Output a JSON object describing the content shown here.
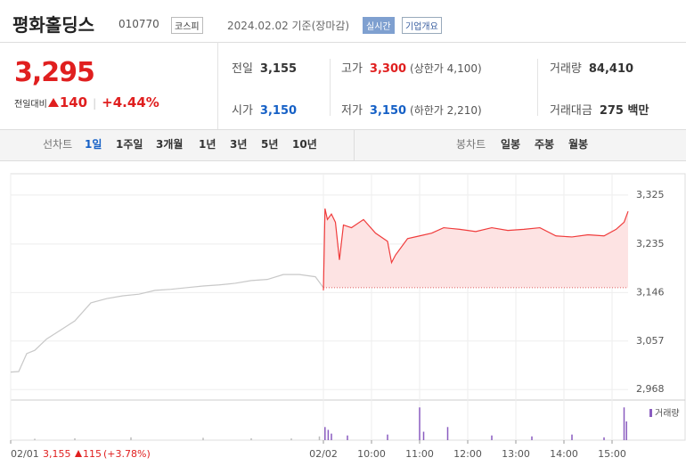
{
  "header": {
    "name": "평화홀딩스",
    "code": "010770",
    "market": "코스피",
    "date": "2024.02.02 기준(장마감)",
    "realtime": "실시간",
    "overview": "기업개요"
  },
  "price": {
    "current": "3,295",
    "change_label": "전일대비",
    "change": "140",
    "change_pct": "+4.44%"
  },
  "stats": [
    [
      {
        "label": "전일",
        "value": "3,155"
      },
      {
        "label": "고가",
        "value": "3,300",
        "note": "(상한가 4,100)"
      },
      {
        "label": "거래량",
        "value": "84,410"
      }
    ],
    [
      {
        "label": "시가",
        "value": "3,150"
      },
      {
        "label": "저가",
        "value": "3,150",
        "note": "(하한가 2,210)"
      },
      {
        "label": "거래대금",
        "value": "275 백만"
      }
    ]
  ],
  "tabs": {
    "line_label": "선차트",
    "line_periods": [
      "1일",
      "1주일",
      "3개월",
      "1년",
      "3년",
      "5년",
      "10년"
    ],
    "candle_label": "봉차트",
    "candle_periods": [
      "일봉",
      "주봉",
      "월봉"
    ]
  },
  "chart_data": {
    "type": "line",
    "previous_day": {
      "color": "#c8c8c8",
      "x": [
        0,
        10,
        20,
        30,
        45,
        60,
        80,
        100,
        120,
        140,
        160,
        180,
        200,
        220,
        240,
        260,
        280,
        300,
        320,
        340,
        360,
        380,
        390
      ],
      "values": [
        3000,
        3001,
        3034,
        3040,
        3061,
        3075,
        3094,
        3127,
        3135,
        3140,
        3143,
        3150,
        3152,
        3155,
        3158,
        3160,
        3163,
        3168,
        3170,
        3179,
        3179,
        3175,
        3155
      ]
    },
    "today": {
      "color": "#f03c3c",
      "x": [
        390,
        392,
        395,
        400,
        405,
        410,
        415,
        425,
        440,
        455,
        470,
        475,
        480,
        495,
        510,
        525,
        540,
        560,
        580,
        600,
        620,
        640,
        660,
        680,
        700,
        720,
        740,
        755,
        765,
        770
      ],
      "values": [
        3150,
        3300,
        3280,
        3290,
        3275,
        3206,
        3270,
        3265,
        3280,
        3255,
        3240,
        3201,
        3215,
        3245,
        3250,
        3255,
        3265,
        3262,
        3258,
        3265,
        3260,
        3262,
        3265,
        3250,
        3248,
        3252,
        3250,
        3262,
        3275,
        3295
      ]
    },
    "baseline": 3155,
    "ylim": [
      2952,
      3364
    ],
    "yticks": [
      {
        "value": 2968,
        "label": "2,968"
      },
      {
        "value": 3057,
        "label": "3,057"
      },
      {
        "value": 3146,
        "label": "3,146"
      },
      {
        "value": 3235,
        "label": "3,235"
      },
      {
        "value": 3325,
        "label": "3,325"
      }
    ],
    "xlim": [
      0,
      770
    ],
    "xticks": [
      {
        "value": 0,
        "label": "02/01"
      },
      {
        "value": 390,
        "label": "02/02"
      },
      {
        "value": 450,
        "label": "10:00"
      },
      {
        "value": 510,
        "label": "11:00"
      },
      {
        "value": 570,
        "label": "12:00"
      },
      {
        "value": 630,
        "label": "13:00"
      },
      {
        "value": 690,
        "label": "14:00"
      },
      {
        "value": 750,
        "label": "15:00"
      }
    ],
    "volume": {
      "name": "거래량",
      "color": "#8a5cc0",
      "ylim": [
        0,
        4000
      ],
      "x": [
        30,
        80,
        150,
        240,
        300,
        350,
        385,
        392,
        396,
        400,
        420,
        470,
        510,
        515,
        545,
        600,
        650,
        700,
        740,
        765,
        768
      ],
      "values": [
        150,
        200,
        300,
        250,
        200,
        180,
        400,
        1400,
        1100,
        700,
        500,
        600,
        3500,
        900,
        1400,
        500,
        400,
        600,
        300,
        3500,
        2000
      ]
    },
    "annotation": {
      "close": "3,155",
      "change": "115",
      "change_pct": "(+3.78%)"
    }
  }
}
